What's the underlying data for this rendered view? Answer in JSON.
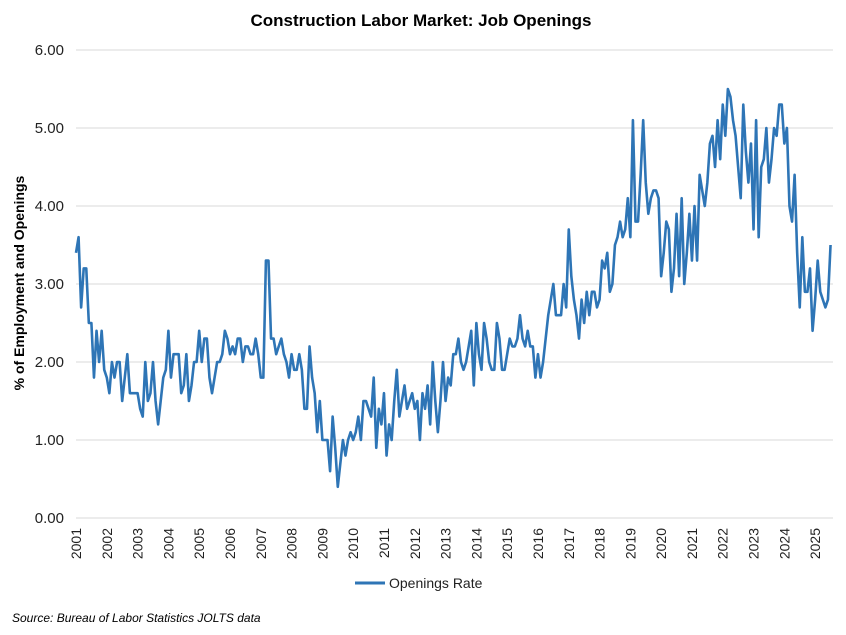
{
  "chart_data": {
    "type": "line",
    "title": "Construction Labor Market: Job Openings",
    "ylabel": "% of Employment and Openings",
    "xlabel": "",
    "ylim": [
      0,
      6
    ],
    "xlim": [
      2001,
      2025.58
    ],
    "yticks": [
      "0.00",
      "1.00",
      "2.00",
      "3.00",
      "4.00",
      "5.00",
      "6.00"
    ],
    "xticks": [
      "2001",
      "2002",
      "2003",
      "2004",
      "2005",
      "2006",
      "2007",
      "2008",
      "2009",
      "2010",
      "2011",
      "2012",
      "2013",
      "2014",
      "2015",
      "2016",
      "2017",
      "2018",
      "2019",
      "2020",
      "2021",
      "2022",
      "2023",
      "2024",
      "2025"
    ],
    "grid": true,
    "legend_position": "bottom",
    "source": "Source: Bureau of Labor Statistics JOLTS data",
    "line_color": "#2e75b6",
    "series": [
      {
        "name": "Openings Rate",
        "start": "2001-01",
        "frequency": "monthly",
        "values": [
          3.4,
          3.6,
          2.7,
          3.2,
          3.2,
          2.5,
          2.5,
          1.8,
          2.4,
          2.0,
          2.4,
          1.9,
          1.8,
          1.6,
          2.0,
          1.8,
          2.0,
          2.0,
          1.5,
          1.8,
          2.1,
          1.6,
          1.6,
          1.6,
          1.6,
          1.4,
          1.3,
          2.0,
          1.5,
          1.6,
          2.0,
          1.5,
          1.2,
          1.5,
          1.8,
          1.9,
          2.4,
          1.8,
          2.1,
          2.1,
          2.1,
          1.6,
          1.7,
          2.1,
          1.5,
          1.7,
          2.0,
          2.0,
          2.4,
          2.0,
          2.3,
          2.3,
          1.8,
          1.6,
          1.8,
          2.0,
          2.0,
          2.1,
          2.4,
          2.3,
          2.1,
          2.2,
          2.1,
          2.3,
          2.3,
          2.0,
          2.2,
          2.2,
          2.1,
          2.1,
          2.3,
          2.1,
          1.8,
          1.8,
          3.3,
          3.3,
          2.3,
          2.3,
          2.1,
          2.2,
          2.3,
          2.1,
          2.0,
          1.8,
          2.1,
          1.9,
          1.9,
          2.1,
          1.9,
          1.4,
          1.4,
          2.2,
          1.8,
          1.6,
          1.1,
          1.5,
          1.0,
          1.0,
          1.0,
          0.6,
          1.3,
          0.9,
          0.4,
          0.7,
          1.0,
          0.8,
          1.0,
          1.1,
          1.0,
          1.1,
          1.3,
          1.0,
          1.5,
          1.5,
          1.4,
          1.3,
          1.8,
          0.9,
          1.4,
          1.2,
          1.6,
          0.8,
          1.2,
          1.0,
          1.5,
          1.9,
          1.3,
          1.5,
          1.7,
          1.4,
          1.5,
          1.6,
          1.4,
          1.5,
          1.0,
          1.6,
          1.4,
          1.7,
          1.2,
          2.0,
          1.5,
          1.1,
          1.5,
          2.0,
          1.5,
          1.8,
          1.7,
          2.1,
          2.1,
          2.3,
          2.0,
          1.9,
          2.0,
          2.2,
          2.4,
          1.7,
          2.5,
          2.1,
          1.9,
          2.5,
          2.3,
          2.0,
          1.9,
          1.9,
          2.5,
          2.3,
          1.9,
          1.9,
          2.1,
          2.3,
          2.2,
          2.2,
          2.3,
          2.6,
          2.3,
          2.2,
          2.4,
          2.2,
          2.2,
          1.8,
          2.1,
          1.8,
          2.0,
          2.3,
          2.6,
          2.8,
          3.0,
          2.6,
          2.6,
          2.6,
          3.0,
          2.7,
          3.7,
          3.1,
          2.8,
          2.6,
          2.3,
          2.8,
          2.5,
          2.9,
          2.6,
          2.9,
          2.9,
          2.7,
          2.8,
          3.3,
          3.2,
          3.4,
          2.9,
          3.0,
          3.5,
          3.6,
          3.8,
          3.6,
          3.7,
          4.1,
          3.6,
          5.1,
          3.8,
          3.8,
          4.4,
          5.1,
          4.3,
          3.9,
          4.1,
          4.2,
          4.2,
          4.1,
          3.1,
          3.4,
          3.8,
          3.7,
          2.9,
          3.2,
          3.9,
          3.1,
          4.1,
          3.0,
          3.4,
          3.9,
          3.3,
          4.0,
          3.3,
          4.4,
          4.2,
          4.0,
          4.3,
          4.8,
          4.9,
          4.5,
          5.1,
          4.6,
          5.3,
          4.9,
          5.5,
          5.4,
          5.1,
          4.9,
          4.5,
          4.1,
          5.3,
          4.7,
          4.3,
          4.8,
          3.7,
          5.1,
          3.6,
          4.5,
          4.6,
          5.0,
          4.3,
          4.6,
          5.0,
          4.9,
          5.3,
          5.3,
          4.8,
          5.0,
          4.0,
          3.8,
          4.4,
          3.4,
          2.7,
          3.6,
          2.9,
          2.9,
          3.2,
          2.4,
          2.8,
          3.3,
          2.9,
          2.8,
          2.7,
          2.8,
          3.5
        ]
      }
    ]
  }
}
